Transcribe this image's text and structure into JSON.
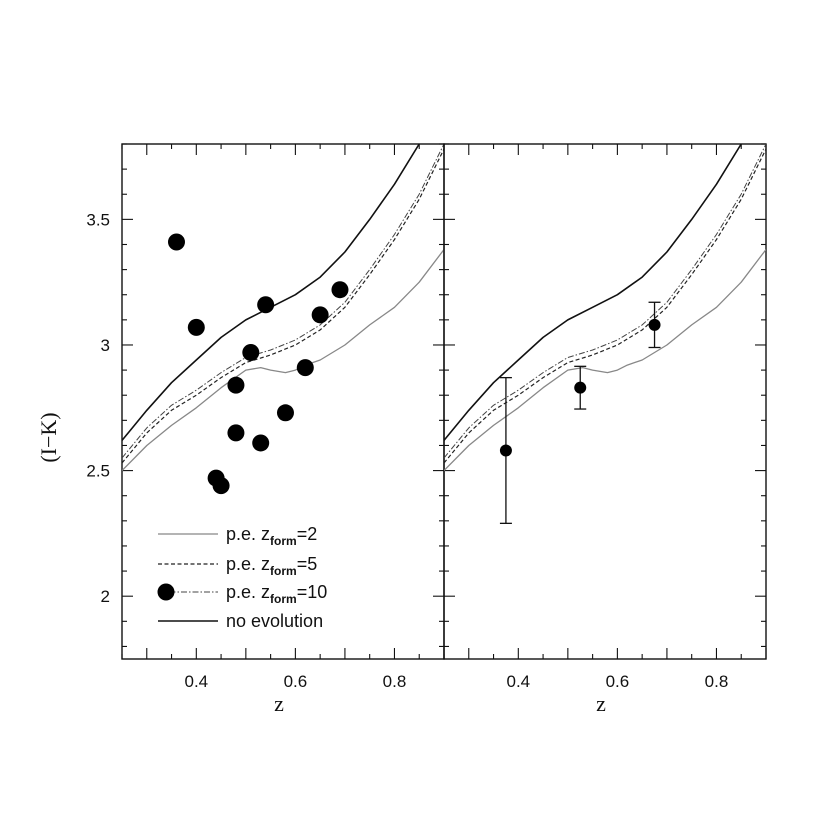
{
  "chart_data": [
    {
      "type": "line",
      "panel": "left",
      "xlabel": "z",
      "ylabel": "(I−K)",
      "xlim": [
        0.25,
        0.9
      ],
      "ylim": [
        1.75,
        3.8
      ],
      "x_ticks": [
        0.4,
        0.6,
        0.8
      ],
      "y_ticks": [
        2,
        2.5,
        3,
        3.5
      ],
      "x_tick_labels": [
        "0.4",
        "0.6",
        "0.8"
      ],
      "y_tick_labels": [
        "2",
        "2.5",
        "3",
        "3.5"
      ],
      "grid": false,
      "legend_position": "bottom-left",
      "series": [
        {
          "name": "p.e. z_form=2",
          "legend_parts": [
            "p.e. z",
            "form",
            "=2"
          ],
          "style": "dotted-light",
          "x": [
            0.25,
            0.3,
            0.35,
            0.4,
            0.45,
            0.5,
            0.53,
            0.55,
            0.58,
            0.6,
            0.62,
            0.65,
            0.7,
            0.75,
            0.8,
            0.85,
            0.9
          ],
          "y": [
            2.5,
            2.6,
            2.68,
            2.75,
            2.83,
            2.9,
            2.91,
            2.9,
            2.89,
            2.9,
            2.92,
            2.94,
            3.0,
            3.08,
            3.15,
            3.25,
            3.38
          ]
        },
        {
          "name": "p.e. z_form=5",
          "legend_parts": [
            "p.e. z",
            "form",
            "=5"
          ],
          "style": "dashed",
          "x": [
            0.25,
            0.3,
            0.35,
            0.4,
            0.45,
            0.5,
            0.55,
            0.6,
            0.65,
            0.7,
            0.75,
            0.8,
            0.85,
            0.9
          ],
          "y": [
            2.53,
            2.65,
            2.74,
            2.8,
            2.87,
            2.93,
            2.96,
            3.0,
            3.06,
            3.15,
            3.28,
            3.42,
            3.58,
            3.78
          ]
        },
        {
          "name": "p.e. z_form=10",
          "legend_parts": [
            "p.e. z",
            "form",
            "=10"
          ],
          "style": "dash-dot",
          "x": [
            0.25,
            0.3,
            0.35,
            0.4,
            0.45,
            0.5,
            0.55,
            0.6,
            0.65,
            0.7,
            0.75,
            0.8,
            0.85,
            0.9
          ],
          "y": [
            2.55,
            2.67,
            2.76,
            2.82,
            2.89,
            2.95,
            2.98,
            3.02,
            3.08,
            3.17,
            3.3,
            3.44,
            3.6,
            3.8
          ]
        },
        {
          "name": "no evolution",
          "legend_parts": [
            "no evolution",
            "",
            ""
          ],
          "style": "solid",
          "x": [
            0.25,
            0.3,
            0.35,
            0.4,
            0.45,
            0.5,
            0.55,
            0.6,
            0.65,
            0.7,
            0.75,
            0.8,
            0.85,
            0.87
          ],
          "y": [
            2.62,
            2.74,
            2.85,
            2.94,
            3.03,
            3.1,
            3.15,
            3.2,
            3.27,
            3.37,
            3.5,
            3.64,
            3.8,
            3.86
          ]
        }
      ],
      "points": [
        {
          "x": 0.36,
          "y": 3.41
        },
        {
          "x": 0.4,
          "y": 3.07
        },
        {
          "x": 0.44,
          "y": 2.47
        },
        {
          "x": 0.45,
          "y": 2.44
        },
        {
          "x": 0.48,
          "y": 2.84
        },
        {
          "x": 0.48,
          "y": 2.65
        },
        {
          "x": 0.51,
          "y": 2.97
        },
        {
          "x": 0.53,
          "y": 2.61
        },
        {
          "x": 0.54,
          "y": 3.16
        },
        {
          "x": 0.58,
          "y": 2.73
        },
        {
          "x": 0.62,
          "y": 2.91
        },
        {
          "x": 0.65,
          "y": 3.12
        },
        {
          "x": 0.69,
          "y": 3.22
        }
      ]
    },
    {
      "type": "line",
      "panel": "right",
      "xlabel": "z",
      "xlim": [
        0.25,
        0.9
      ],
      "ylim": [
        1.75,
        3.8
      ],
      "x_ticks": [
        0.4,
        0.6,
        0.8
      ],
      "x_tick_labels": [
        "0.4",
        "0.6",
        "0.8"
      ],
      "grid": false,
      "series": [
        {
          "style": "dotted-light",
          "x": [
            0.25,
            0.3,
            0.35,
            0.4,
            0.45,
            0.5,
            0.53,
            0.55,
            0.58,
            0.6,
            0.62,
            0.65,
            0.7,
            0.75,
            0.8,
            0.85,
            0.9
          ],
          "y": [
            2.5,
            2.6,
            2.68,
            2.75,
            2.83,
            2.9,
            2.91,
            2.9,
            2.89,
            2.9,
            2.92,
            2.94,
            3.0,
            3.08,
            3.15,
            3.25,
            3.38
          ]
        },
        {
          "style": "dashed",
          "x": [
            0.25,
            0.3,
            0.35,
            0.4,
            0.45,
            0.5,
            0.55,
            0.6,
            0.65,
            0.7,
            0.75,
            0.8,
            0.85,
            0.9
          ],
          "y": [
            2.53,
            2.65,
            2.74,
            2.8,
            2.87,
            2.93,
            2.96,
            3.0,
            3.06,
            3.15,
            3.28,
            3.42,
            3.58,
            3.78
          ]
        },
        {
          "style": "dash-dot",
          "x": [
            0.25,
            0.3,
            0.35,
            0.4,
            0.45,
            0.5,
            0.55,
            0.6,
            0.65,
            0.7,
            0.75,
            0.8,
            0.85,
            0.9
          ],
          "y": [
            2.55,
            2.67,
            2.76,
            2.82,
            2.89,
            2.95,
            2.98,
            3.02,
            3.08,
            3.17,
            3.3,
            3.44,
            3.6,
            3.8
          ]
        },
        {
          "style": "solid",
          "x": [
            0.25,
            0.3,
            0.35,
            0.4,
            0.45,
            0.5,
            0.55,
            0.6,
            0.65,
            0.7,
            0.75,
            0.8,
            0.85,
            0.87
          ],
          "y": [
            2.62,
            2.74,
            2.85,
            2.94,
            3.03,
            3.1,
            3.15,
            3.2,
            3.27,
            3.37,
            3.5,
            3.64,
            3.8,
            3.86
          ]
        }
      ],
      "points": [
        {
          "x": 0.375,
          "y": 2.58,
          "err": 0.29
        },
        {
          "x": 0.525,
          "y": 2.83,
          "err": 0.085
        },
        {
          "x": 0.675,
          "y": 3.08,
          "err": 0.09
        }
      ]
    }
  ]
}
